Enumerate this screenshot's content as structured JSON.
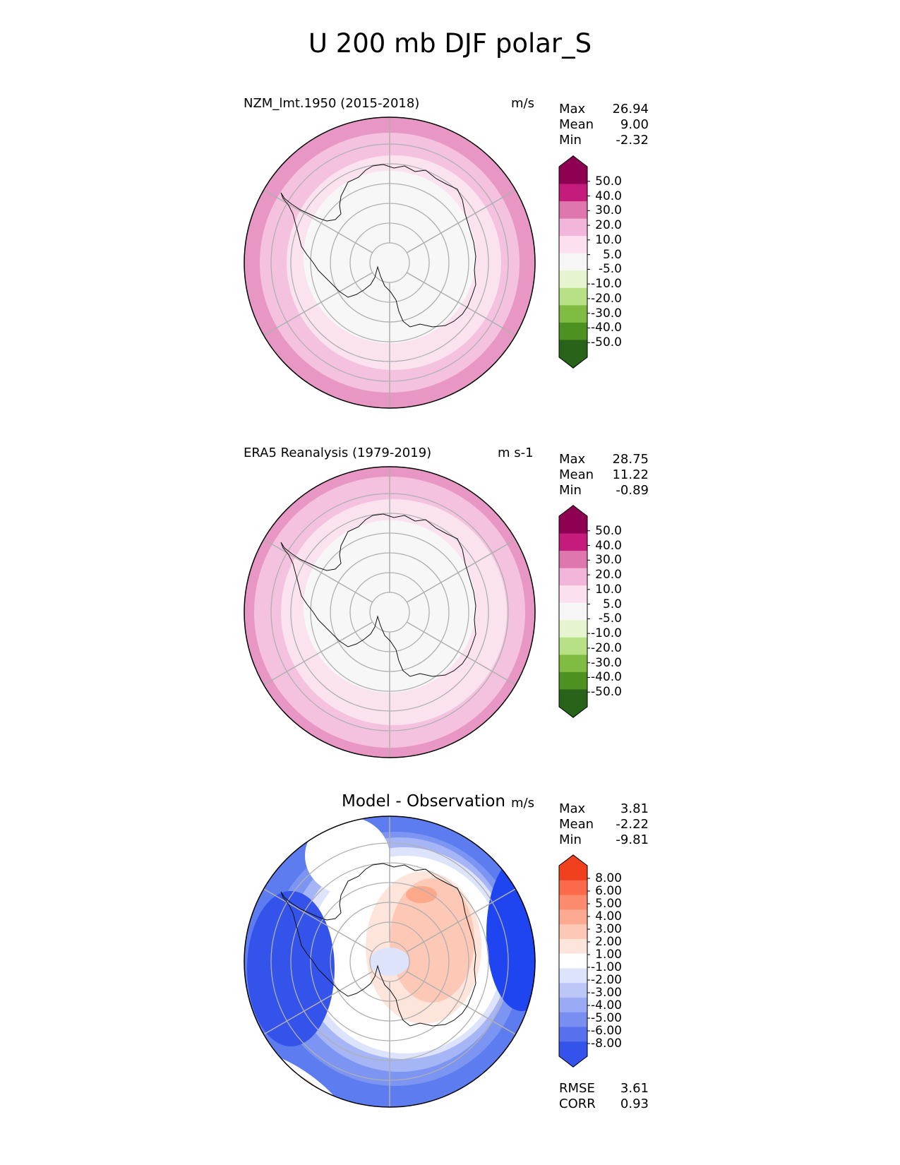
{
  "figure": {
    "title": "U 200 mb DJF polar_S"
  },
  "panels": [
    {
      "title": "NZM_lmt.1950 (2015-2018)",
      "units": "m/s",
      "stats": [
        {
          "label": "Max",
          "value": "26.94"
        },
        {
          "label": "Mean",
          "value": "9.00"
        },
        {
          "label": "Min",
          "value": "-2.32"
        }
      ],
      "colorbar": {
        "ticks": [
          "50.0",
          "40.0",
          "30.0",
          "20.0",
          "10.0",
          "5.0",
          "-5.0",
          "-10.0",
          "-20.0",
          "-30.0",
          "-40.0",
          "-50.0"
        ],
        "colors": [
          "#8e0152",
          "#c51b7d",
          "#de77ae",
          "#f1b6da",
          "#fde0ef",
          "#f7f7f7",
          "#e6f5d0",
          "#b8e186",
          "#7fbc41",
          "#4d9221",
          "#276419"
        ]
      },
      "bands": [
        "#e897c4",
        "#f4c2df",
        "#fbe2ef",
        "#f7f7f7"
      ]
    },
    {
      "title": "ERA5 Reanalysis (1979-2019)",
      "units": "m s-1",
      "stats": [
        {
          "label": "Max",
          "value": "28.75"
        },
        {
          "label": "Mean",
          "value": "11.22"
        },
        {
          "label": "Min",
          "value": "-0.89"
        }
      ],
      "colorbar": {
        "ticks": [
          "50.0",
          "40.0",
          "30.0",
          "20.0",
          "10.0",
          "5.0",
          "-5.0",
          "-10.0",
          "-20.0",
          "-30.0",
          "-40.0",
          "-50.0"
        ],
        "colors": [
          "#8e0152",
          "#c51b7d",
          "#de77ae",
          "#f1b6da",
          "#fde0ef",
          "#f7f7f7",
          "#e6f5d0",
          "#b8e186",
          "#7fbc41",
          "#4d9221",
          "#276419"
        ]
      },
      "bands": [
        "#e897c4",
        "#f4c2df",
        "#fbe2ef",
        "#f7f7f7"
      ]
    },
    {
      "title": "Model - Observation",
      "units": "m/s",
      "stats": [
        {
          "label": "Max",
          "value": "3.81"
        },
        {
          "label": "Mean",
          "value": "-2.22"
        },
        {
          "label": "Min",
          "value": "-9.81"
        }
      ],
      "colorbar": {
        "ticks": [
          "8.00",
          "6.00",
          "5.00",
          "4.00",
          "3.00",
          "2.00",
          "1.00",
          "-1.00",
          "-2.00",
          "-3.00",
          "-4.00",
          "-5.00",
          "-6.00",
          "-8.00"
        ],
        "colors": [
          "#f0401e",
          "#fb6a4a",
          "#fc8b6e",
          "#fcab92",
          "#fdc8b6",
          "#fee5dc",
          "#ffffff",
          "#dde3fb",
          "#bcc7f8",
          "#9aaaf5",
          "#788ef1",
          "#5671ee",
          "#3453eb"
        ]
      },
      "extra_stats": [
        {
          "label": "RMSE",
          "value": "3.61"
        },
        {
          "label": "CORR",
          "value": "0.93"
        }
      ]
    }
  ],
  "chart_data": [
    {
      "type": "heatmap",
      "title": "NZM_lmt.1950 (2015-2018)",
      "units": "m/s",
      "projection": "south polar stereographic",
      "stats": {
        "max": 26.94,
        "mean": 9.0,
        "min": -2.32
      },
      "levels": [
        -50,
        -40,
        -30,
        -20,
        -10,
        -5,
        5,
        10,
        20,
        30,
        40,
        50
      ],
      "field_summary": "weak winds (-5 to 5) over Antarctica, increasing to 20-30 m/s at the outer ring"
    },
    {
      "type": "heatmap",
      "title": "ERA5 Reanalysis (1979-2019)",
      "units": "m s-1",
      "projection": "south polar stereographic",
      "stats": {
        "max": 28.75,
        "mean": 11.22,
        "min": -0.89
      },
      "levels": [
        -50,
        -40,
        -30,
        -20,
        -10,
        -5,
        5,
        10,
        20,
        30,
        40,
        50
      ],
      "field_summary": "weak winds over Antarctica, 20-30 m/s band around the outer edge"
    },
    {
      "type": "heatmap",
      "title": "Model - Observation",
      "units": "m/s",
      "projection": "south polar stereographic",
      "stats": {
        "max": 3.81,
        "mean": -2.22,
        "min": -9.81,
        "rmse": 3.61,
        "corr": 0.93
      },
      "levels": [
        -8,
        -6,
        -5,
        -4,
        -3,
        -2,
        -1,
        1,
        2,
        3,
        4,
        5,
        6,
        8
      ],
      "field_summary": "positive differences (1-4) over East Antarctica, negative (-3 to -8) in outer ring, strongest on the east and west edges"
    }
  ]
}
